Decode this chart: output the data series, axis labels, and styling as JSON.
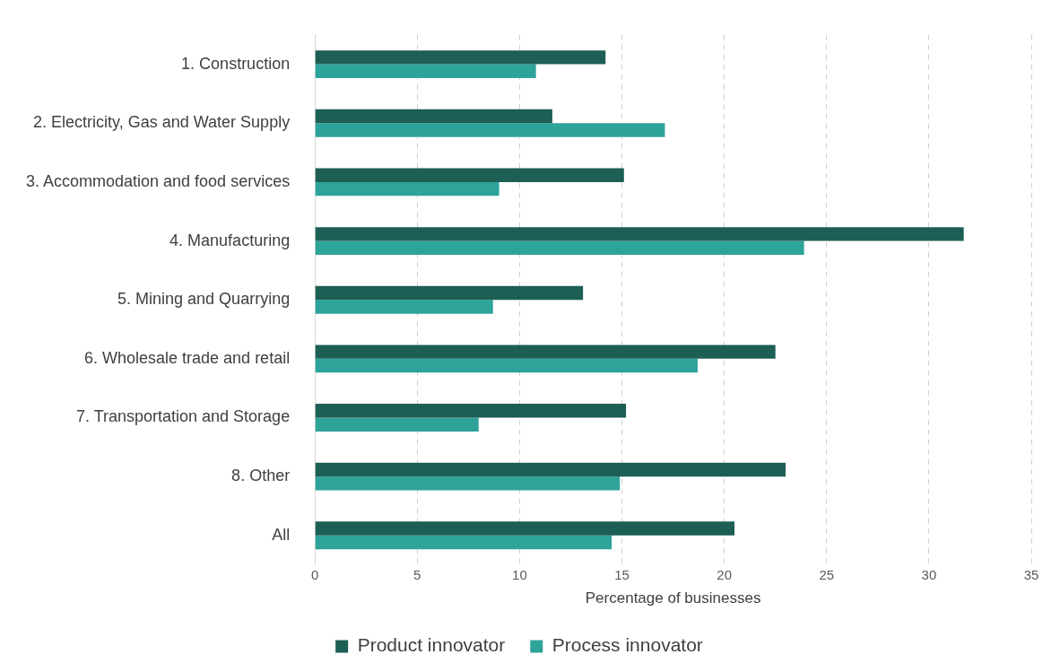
{
  "chart_data": {
    "type": "bar",
    "orientation": "horizontal",
    "xlabel": "Percentage of businesses",
    "categories": [
      "1. Construction",
      "2. Electricity, Gas and Water Supply",
      "3. Accommodation and food services",
      "4. Manufacturing",
      "5. Mining and Quarrying",
      "6. Wholesale trade and retail",
      "7. Transportation and Storage",
      "8. Other",
      "All"
    ],
    "series": [
      {
        "name": "Product innovator",
        "color": "#1d5e55",
        "values": [
          14.2,
          11.6,
          15.1,
          31.7,
          13.1,
          22.5,
          15.2,
          23.0,
          20.5
        ]
      },
      {
        "name": "Process innovator",
        "color": "#2ea39a",
        "values": [
          10.8,
          17.1,
          9.0,
          23.9,
          8.7,
          18.7,
          8.0,
          14.9,
          14.5
        ]
      }
    ],
    "xlim": [
      0,
      35
    ],
    "xticks": [
      0,
      5,
      10,
      15,
      20,
      25,
      30,
      35
    ],
    "grid": "x",
    "legend": "bottom"
  }
}
